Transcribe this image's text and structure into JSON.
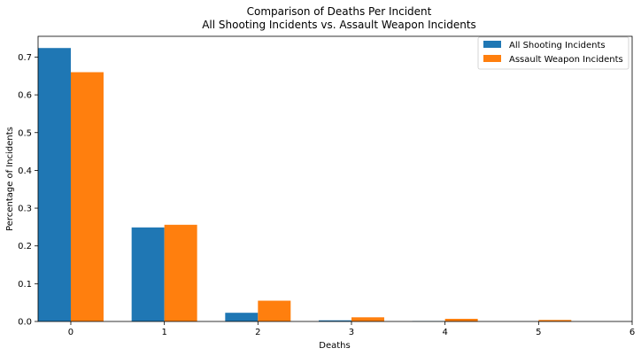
{
  "chart_data": {
    "type": "bar",
    "title": "Comparison of Deaths Per Incident",
    "subtitle": "All Shooting Incidents vs. Assault Weapon Incidents",
    "xlabel": "Deaths",
    "ylabel": "Percentage of Incidents",
    "categories": [
      0,
      1,
      2,
      3,
      4,
      5
    ],
    "xlim": [
      -0.35,
      6
    ],
    "ylim": [
      0,
      0.755
    ],
    "xticks": [
      "0",
      "1",
      "2",
      "3",
      "4",
      "5",
      "6"
    ],
    "yticks": [
      "0.0",
      "0.1",
      "0.2",
      "0.3",
      "0.4",
      "0.5",
      "0.6",
      "0.7"
    ],
    "grid": false,
    "legend_position": "top-right",
    "series": [
      {
        "name": "All Shooting Incidents",
        "color": "#1f77b4",
        "values": [
          0.724,
          0.249,
          0.023,
          0.003,
          0.001,
          0.0
        ]
      },
      {
        "name": "Assault Weapon Incidents",
        "color": "#ff7f0e",
        "values": [
          0.66,
          0.256,
          0.055,
          0.011,
          0.007,
          0.004
        ]
      }
    ]
  }
}
